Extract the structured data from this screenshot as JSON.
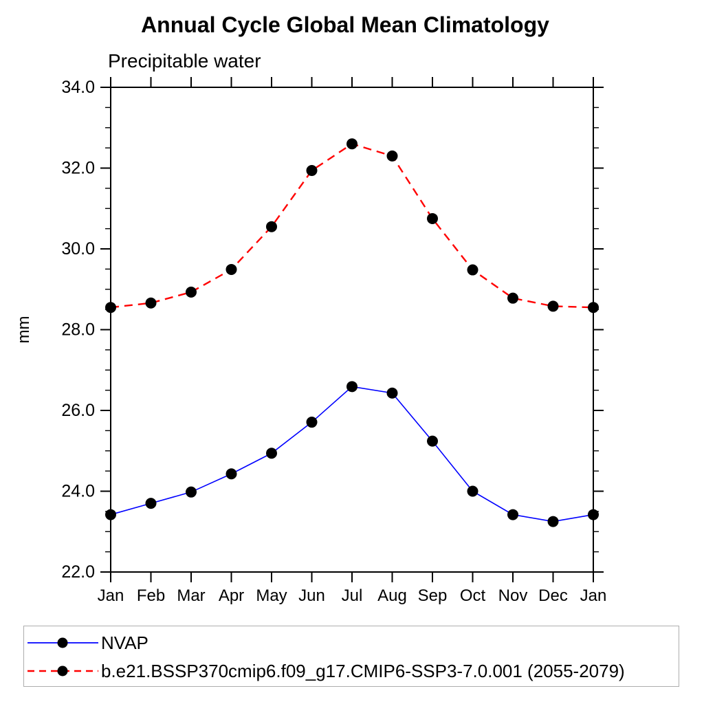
{
  "page": {
    "background": "#ffffff"
  },
  "legend": {
    "border_color": "#adadad"
  },
  "chart_data": {
    "type": "line",
    "title": "Annual Cycle Global Mean Climatology",
    "subtitle": "Precipitable water",
    "xlabel": "",
    "ylabel": "mm",
    "categories": [
      "Jan",
      "Feb",
      "Mar",
      "Apr",
      "May",
      "Jun",
      "Jul",
      "Aug",
      "Sep",
      "Oct",
      "Nov",
      "Dec",
      "Jan"
    ],
    "series": [
      {
        "name": "NVAP",
        "color": "#0000ff",
        "line_style": "solid",
        "marker": "filled-circle",
        "marker_color": "#000000",
        "values": [
          23.42,
          23.7,
          23.98,
          24.43,
          24.94,
          25.71,
          26.59,
          26.43,
          25.24,
          24.0,
          23.42,
          23.25,
          23.42
        ]
      },
      {
        "name": "b.e21.BSSP370cmip6.f09_g17.CMIP6-SSP3-7.0.001 (2055-2079)",
        "color": "#ff0000",
        "line_style": "dashed",
        "marker": "filled-circle",
        "marker_color": "#000000",
        "values": [
          28.55,
          28.66,
          28.93,
          29.49,
          30.55,
          31.94,
          32.6,
          32.3,
          30.75,
          29.48,
          28.78,
          28.58,
          28.55
        ]
      }
    ],
    "ylim": [
      22.0,
      34.0
    ],
    "ytick_step": 2.0,
    "ytick_minor_step": 0.5,
    "ytick_labels": [
      "22.0",
      "24.0",
      "26.0",
      "28.0",
      "30.0",
      "32.0",
      "34.0"
    ],
    "grid": false,
    "legend_position": "bottom-box"
  }
}
